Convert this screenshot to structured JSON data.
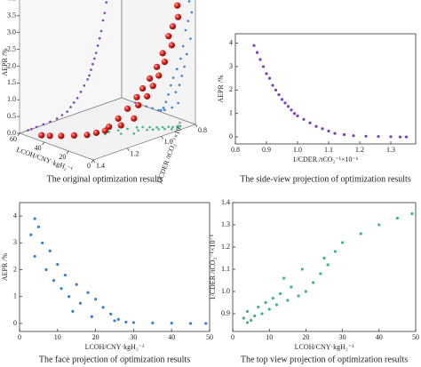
{
  "chart_data": [
    {
      "type": "scatter3d",
      "title": "The original optimization results",
      "xlabel": "1/CDER /tCO₂⁻¹×10⁻⁶",
      "ylabel": "LCOH/CNY·kgH₂⁻¹",
      "zlabel": "AEPR /%",
      "color": "#e0201c",
      "projection_colors": {
        "side": "#7b3fbf",
        "face": "#3b7fd0",
        "top": "#3fb38a"
      },
      "xlim": [
        0.8,
        1.4
      ],
      "ylim": [
        0,
        60
      ],
      "zlim": [
        0,
        4.5
      ],
      "xticks": [
        0.8,
        {
          "value": 1.0,
          "label": "1.0"
        },
        1.2,
        1.4
      ],
      "yticks": [
        0,
        20,
        40,
        60
      ],
      "zticks": [
        {
          "value": 0,
          "label": "0.0"
        },
        0.5,
        {
          "value": 1,
          "label": "1.0"
        },
        1.5,
        {
          "value": 2,
          "label": "2.0"
        },
        2.5,
        {
          "value": 3,
          "label": "3.0"
        },
        3.5,
        {
          "value": 4,
          "label": "4.0"
        }
      ],
      "x": [
        0.86,
        0.87,
        0.88,
        0.89,
        0.9,
        0.91,
        0.92,
        0.93,
        0.94,
        0.95,
        0.96,
        0.97,
        0.98,
        0.99,
        1.0,
        1.02,
        1.04,
        1.06,
        1.08,
        1.1,
        1.12,
        1.15,
        1.18,
        1.22,
        1.26,
        1.3,
        1.33,
        1.35
      ],
      "y": [
        4,
        5,
        3,
        6,
        8,
        4,
        10,
        7,
        12,
        9,
        15,
        11,
        18,
        13,
        20,
        16,
        22,
        14,
        24,
        19,
        26,
        25,
        28,
        30,
        35,
        40,
        45,
        49
      ],
      "z": [
        3.9,
        3.6,
        3.3,
        3.0,
        2.7,
        2.5,
        2.2,
        2.0,
        1.8,
        1.6,
        1.45,
        1.3,
        1.15,
        1.0,
        0.9,
        0.75,
        0.6,
        0.45,
        0.35,
        0.25,
        0.15,
        0.1,
        0.05,
        0.03,
        0.02,
        0.01,
        0,
        0
      ]
    },
    {
      "type": "scatter",
      "title": "The side-view projection of optimization results",
      "xlabel": "1/CDER /tCO₂⁻¹×10⁻⁶",
      "ylabel": "AEPR /%",
      "color": "#7b3fbf",
      "xlim": [
        0.8,
        1.38
      ],
      "ylim": [
        -0.3,
        4.4
      ],
      "xticks": [
        0.8,
        0.9,
        {
          "value": 1.0,
          "label": "1.0"
        },
        1.1,
        1.2,
        1.3
      ],
      "yticks": [
        0,
        1,
        2,
        3,
        4
      ],
      "x": [
        0.86,
        0.87,
        0.88,
        0.89,
        0.9,
        0.91,
        0.92,
        0.93,
        0.94,
        0.95,
        0.96,
        0.97,
        0.98,
        0.99,
        1.0,
        1.02,
        1.04,
        1.06,
        1.08,
        1.1,
        1.12,
        1.15,
        1.18,
        1.22,
        1.26,
        1.3,
        1.33,
        1.35
      ],
      "y": [
        3.9,
        3.6,
        3.3,
        3.0,
        2.7,
        2.5,
        2.2,
        2.0,
        1.8,
        1.6,
        1.45,
        1.3,
        1.15,
        1.0,
        0.9,
        0.75,
        0.6,
        0.45,
        0.35,
        0.25,
        0.15,
        0.1,
        0.05,
        0.03,
        0.02,
        0.01,
        0,
        0
      ]
    },
    {
      "type": "scatter",
      "title": "The face projection of optimization results",
      "xlabel": "LCOH/CNY·kgH₂⁻¹",
      "ylabel": "AEPR /%",
      "color": "#3b7fd0",
      "xlim": [
        0,
        50
      ],
      "ylim": [
        -0.3,
        4.5
      ],
      "xticks": [
        0,
        10,
        20,
        30,
        40,
        50
      ],
      "yticks": [
        0,
        1,
        2,
        3,
        4
      ],
      "x": [
        4,
        5,
        3,
        6,
        8,
        4,
        10,
        7,
        12,
        9,
        15,
        11,
        18,
        13,
        20,
        16,
        22,
        14,
        24,
        19,
        26,
        25,
        28,
        30,
        35,
        40,
        45,
        49
      ],
      "y": [
        3.9,
        3.6,
        3.3,
        3.0,
        2.7,
        2.5,
        2.2,
        2.0,
        1.8,
        1.6,
        1.45,
        1.3,
        1.15,
        1.0,
        0.9,
        0.75,
        0.6,
        0.45,
        0.35,
        0.25,
        0.15,
        0.1,
        0.05,
        0.03,
        0.02,
        0.01,
        0,
        0
      ]
    },
    {
      "type": "scatter",
      "title": "The top view projection of optimization results",
      "xlabel": "LCOH/CNY·kgH₂⁻¹",
      "ylabel": "1/CDER /tCO₂⁻¹×10⁻⁶",
      "color": "#3fb38a",
      "xlim": [
        0,
        50
      ],
      "ylim": [
        0.82,
        1.4
      ],
      "xticks": [
        0,
        10,
        20,
        30,
        40,
        50
      ],
      "yticks": [
        0.9,
        {
          "value": 1.0,
          "label": "1.0"
        },
        1.1,
        1.2,
        1.3,
        1.4
      ],
      "x": [
        4,
        5,
        3,
        6,
        8,
        4,
        10,
        7,
        12,
        9,
        15,
        11,
        18,
        13,
        20,
        16,
        22,
        14,
        24,
        19,
        26,
        25,
        28,
        30,
        35,
        40,
        45,
        49
      ],
      "y": [
        0.86,
        0.87,
        0.88,
        0.89,
        0.9,
        0.91,
        0.92,
        0.93,
        0.94,
        0.95,
        0.96,
        0.97,
        0.98,
        0.99,
        1.0,
        1.02,
        1.04,
        1.06,
        1.08,
        1.1,
        1.12,
        1.15,
        1.18,
        1.22,
        1.26,
        1.3,
        1.33,
        1.35
      ]
    }
  ]
}
